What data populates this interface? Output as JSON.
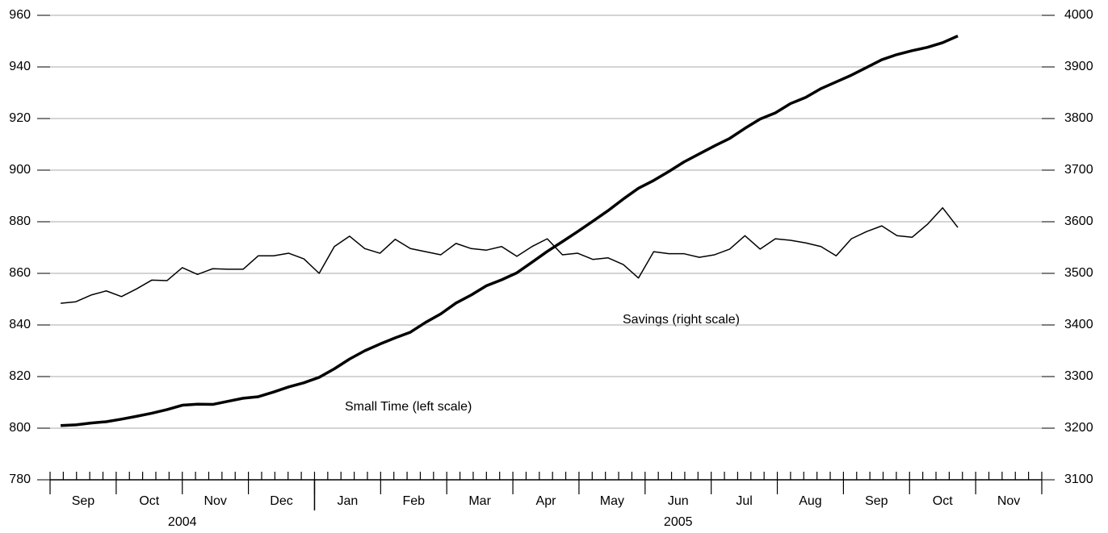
{
  "chart_data": {
    "type": "line",
    "x": [
      0.16,
      0.39,
      0.62,
      0.85,
      1.08,
      1.31,
      1.54,
      1.77,
      2.0,
      2.23,
      2.46,
      2.69,
      2.92,
      3.15,
      3.38,
      3.61,
      3.84,
      4.07,
      4.3,
      4.53,
      4.76,
      4.99,
      5.22,
      5.45,
      5.68,
      5.91,
      6.14,
      6.37,
      6.6,
      6.83,
      7.06,
      7.29,
      7.52,
      7.75,
      7.98,
      8.21,
      8.44,
      8.67,
      8.9,
      9.13,
      9.36,
      9.59,
      9.82,
      10.05,
      10.28,
      10.51,
      10.74,
      10.97,
      11.2,
      11.43,
      11.66,
      11.89,
      12.12,
      12.35,
      12.58,
      12.81,
      13.04,
      13.27,
      13.5,
      13.73
    ],
    "xlim": [
      0,
      15
    ],
    "xticks": [
      {
        "value": 0.5,
        "label": "Sep"
      },
      {
        "value": 1.5,
        "label": "Oct"
      },
      {
        "value": 2.5,
        "label": "Nov"
      },
      {
        "value": 3.5,
        "label": "Dec"
      },
      {
        "value": 4.5,
        "label": "Jan"
      },
      {
        "value": 5.5,
        "label": "Feb"
      },
      {
        "value": 6.5,
        "label": "Mar"
      },
      {
        "value": 7.5,
        "label": "Apr"
      },
      {
        "value": 8.5,
        "label": "May"
      },
      {
        "value": 9.5,
        "label": "Jun"
      },
      {
        "value": 10.5,
        "label": "Jul"
      },
      {
        "value": 11.5,
        "label": "Aug"
      },
      {
        "value": 12.5,
        "label": "Sep"
      },
      {
        "value": 13.5,
        "label": "Oct"
      },
      {
        "value": 14.5,
        "label": "Nov"
      }
    ],
    "xmajorticks": [
      0,
      1,
      2,
      3,
      4,
      5,
      6,
      7,
      8,
      9,
      10,
      11,
      12,
      13,
      14,
      15
    ],
    "xminorticks": [
      0.2,
      0.4,
      0.6,
      0.8,
      1.2,
      1.4,
      1.6,
      1.8,
      2.2,
      2.4,
      2.6,
      2.8,
      3.2,
      3.4,
      3.6,
      3.8,
      4.2,
      4.4,
      4.6,
      4.8,
      5.2,
      5.4,
      5.6,
      5.8,
      6.2,
      6.4,
      6.6,
      6.8,
      7.2,
      7.4,
      7.6,
      7.8,
      8.2,
      8.4,
      8.6,
      8.8,
      9.2,
      9.4,
      9.6,
      9.8,
      10.2,
      10.4,
      10.6,
      10.8,
      11.2,
      11.4,
      11.6,
      11.8,
      12.2,
      12.4,
      12.6,
      12.8,
      13.2,
      13.4,
      13.6,
      13.8,
      14.2,
      14.4,
      14.6,
      14.8
    ],
    "xgroups": [
      {
        "label": "2004",
        "start": 0,
        "end": 4
      },
      {
        "label": "2005",
        "start": 4,
        "end": 15
      }
    ],
    "ylim": [
      780,
      960
    ],
    "yticks": [
      780,
      800,
      820,
      840,
      860,
      880,
      900,
      920,
      940,
      960
    ],
    "y2lim": [
      3100,
      4000
    ],
    "y2ticks": [
      3100,
      3200,
      3300,
      3400,
      3500,
      3600,
      3700,
      3800,
      3900,
      4000
    ],
    "grid": true,
    "series": [
      {
        "name": "Small Time (left scale)",
        "color": "#000000",
        "width": 3.5,
        "values": [
          801,
          801.3,
          802,
          802.5,
          803.5,
          804.6,
          805.8,
          807.2,
          808.9,
          809.3,
          809.2,
          810.4,
          811.6,
          812.2,
          814,
          816,
          817.6,
          819.7,
          823,
          826.8,
          830,
          832.6,
          835,
          837.2,
          841,
          844.3,
          848.5,
          851.6,
          855.2,
          857.5,
          860.2,
          864.3,
          868.5,
          872.3,
          876.2,
          880.2,
          884.3,
          888.8,
          893,
          896,
          899.5,
          903.2,
          906.3,
          909.4,
          912.3,
          916.2,
          919.8,
          922.2,
          925.8,
          928.2,
          931.6,
          934.2,
          936.8,
          939.8,
          942.8,
          944.8,
          946.3,
          947.6,
          949.4,
          952
        ]
      },
      {
        "name": "Savings (right scale)",
        "color": "#000000",
        "width": 1.5,
        "axis": "y2",
        "values": [
          3442,
          3445,
          3458,
          3466,
          3455,
          3470,
          3487,
          3486,
          3511,
          3498,
          3509,
          3508,
          3508,
          3534,
          3534,
          3539,
          3528,
          3500,
          3552,
          3572,
          3548,
          3539,
          3566,
          3548,
          3542,
          3536,
          3558,
          3548,
          3545,
          3552,
          3533,
          3552,
          3567,
          3536,
          3539,
          3527,
          3530,
          3517,
          3491,
          3542,
          3538,
          3538,
          3531,
          3536,
          3547,
          3573,
          3547,
          3567,
          3564,
          3559,
          3552,
          3534,
          3567,
          3581,
          3592,
          3573,
          3570,
          3595,
          3627,
          3589
        ]
      }
    ]
  }
}
